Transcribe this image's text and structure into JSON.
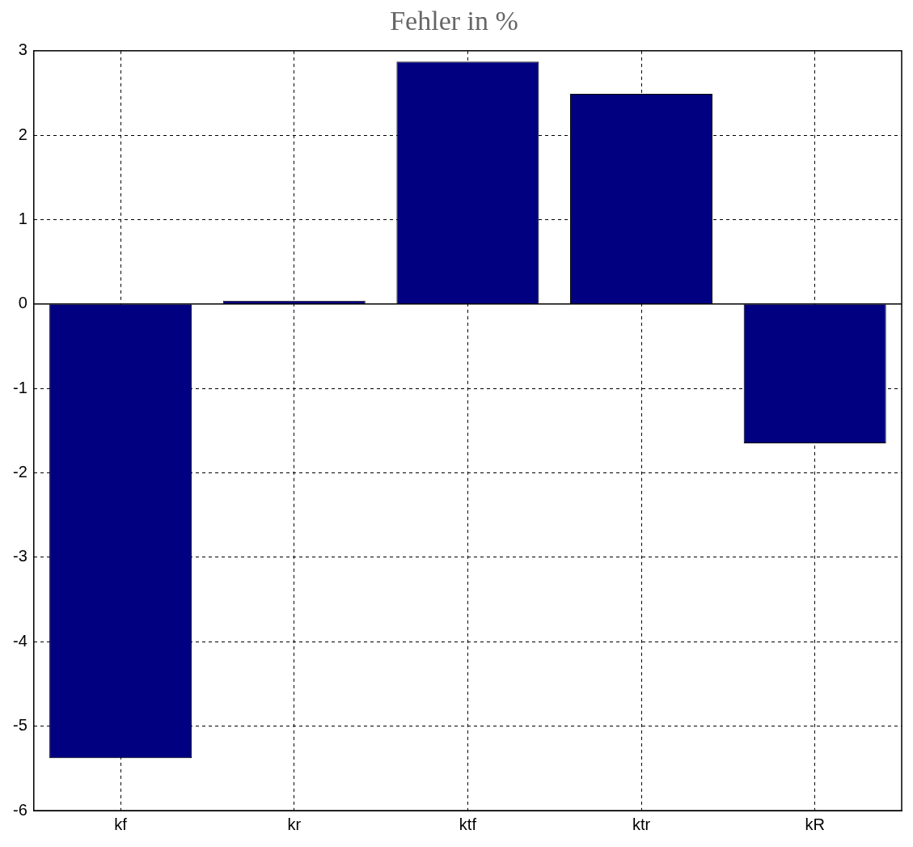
{
  "chart_data": {
    "type": "bar",
    "title": "Fehler in %",
    "categories": [
      "kf",
      "kr",
      "ktf",
      "ktr",
      "kR"
    ],
    "values": [
      -5.38,
      0.04,
      2.87,
      2.49,
      -1.65
    ],
    "color": "#000080",
    "ylim": [
      -6,
      3
    ],
    "yticks": [
      -6,
      -5,
      -4,
      -3,
      -2,
      -1,
      0,
      1,
      2,
      3
    ],
    "grid": true,
    "legend": false
  }
}
